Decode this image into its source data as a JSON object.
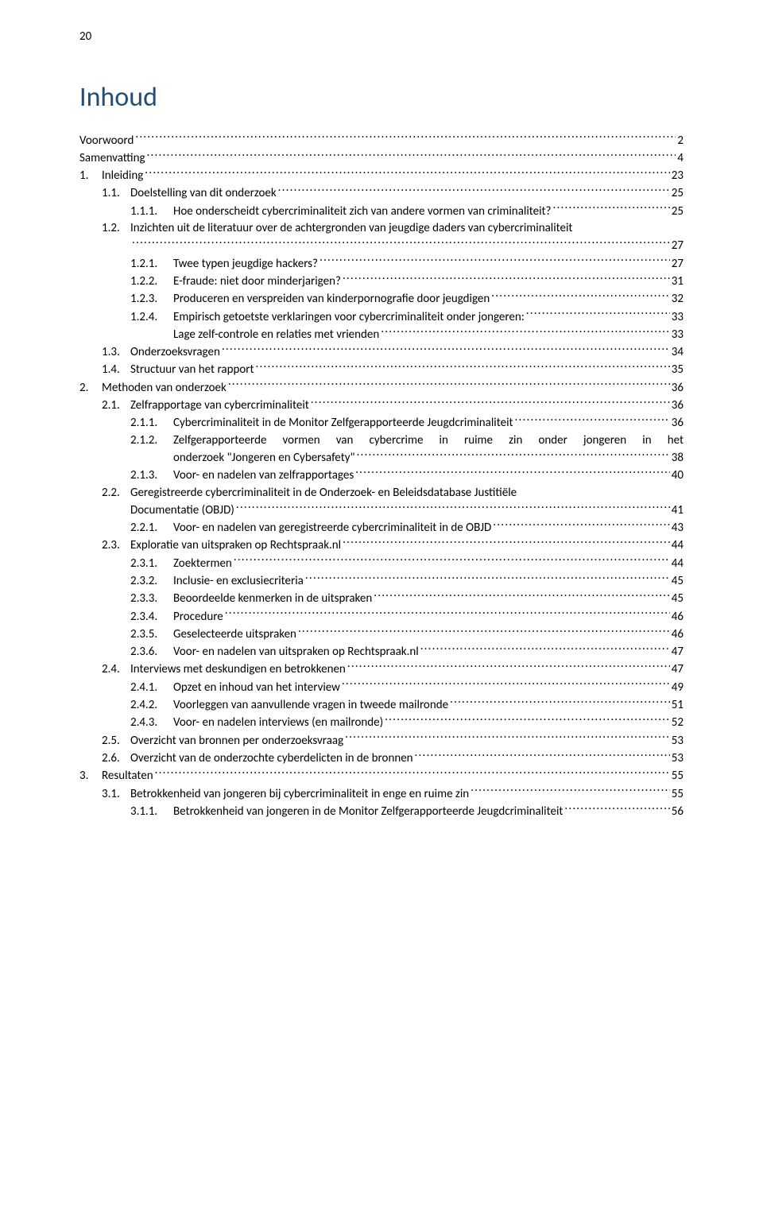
{
  "pageNumber": "20",
  "title": "Inhoud",
  "colors": {
    "title": "#1f4e79",
    "text": "#000000",
    "background": "#ffffff"
  },
  "typography": {
    "body_font": "Calibri",
    "body_size_pt": 11,
    "title_size_pt": 26
  },
  "entries": [
    {
      "level": 0,
      "num": "",
      "text": "Voorwoord",
      "page": "2"
    },
    {
      "level": 0,
      "num": "",
      "text": "Samenvatting",
      "page": "4"
    },
    {
      "level": 1,
      "num": "1.",
      "text": "Inleiding",
      "page": "23"
    },
    {
      "level": 2,
      "num": "1.1.",
      "text": "Doelstelling van dit onderzoek",
      "page": "25"
    },
    {
      "level": 3,
      "num": "1.1.1.",
      "text": "Hoe onderscheidt cybercriminaliteit zich van andere vormen van criminaliteit?",
      "page": "25"
    },
    {
      "level": 2,
      "num": "1.2.",
      "text": "Inzichten uit de literatuur over de achtergronden van jeugdige daders van cybercriminaliteit",
      "page": "27",
      "wrap": true,
      "line1": "Inzichten uit de literatuur over de achtergronden van jeugdige daders van cybercriminaliteit"
    },
    {
      "level": 3,
      "num": "1.2.1.",
      "text": "Twee typen jeugdige hackers?",
      "page": "27"
    },
    {
      "level": 3,
      "num": "1.2.2.",
      "text": "E-fraude: niet door minderjarigen?",
      "page": "31"
    },
    {
      "level": 3,
      "num": "1.2.3.",
      "text": "Produceren en verspreiden van kinderpornografie door jeugdigen",
      "page": "32"
    },
    {
      "level": 3,
      "num": "1.2.4.",
      "text": "Empirisch getoetste verklaringen voor cybercriminaliteit onder jongeren:",
      "page": "33"
    },
    {
      "level": "3x",
      "num": "",
      "text": "Lage zelf-controle en relaties met vrienden",
      "page": "33"
    },
    {
      "level": 2,
      "num": "1.3.",
      "text": "Onderzoeksvragen",
      "page": "34"
    },
    {
      "level": 2,
      "num": "1.4.",
      "text": "Structuur van het rapport",
      "page": "35"
    },
    {
      "level": 1,
      "num": "2.",
      "text": "Methoden van onderzoek",
      "page": "36"
    },
    {
      "level": 2,
      "num": "2.1.",
      "text": "Zelfrapportage van cybercriminaliteit",
      "page": "36"
    },
    {
      "level": 3,
      "num": "2.1.1.",
      "text": "Cybercriminaliteit in de Monitor Zelfgerapporteerde Jeugdcriminaliteit",
      "page": "36"
    },
    {
      "level": 3,
      "num": "2.1.2.",
      "text": "Zelfgerapporteerde vormen van cybercrime in ruime zin onder jongeren in het onderzoek \"Jongeren en Cybersafety\"",
      "page": "38",
      "wrap": true,
      "line1": "Zelfgerapporteerde  vormen  van  cybercrime  in  ruime  zin  onder  jongeren  in  het",
      "line2": "onderzoek \"Jongeren en Cybersafety\"",
      "justify": true
    },
    {
      "level": 3,
      "num": "2.1.3.",
      "text": "Voor- en nadelen van zelfrapportages",
      "page": "40"
    },
    {
      "level": 2,
      "num": "2.2.",
      "text": "Geregistreerde cybercriminaliteit in de Onderzoek- en Beleidsdatabase Justitiële Documentatie (OBJD)",
      "page": "41",
      "wrap": true,
      "line1": "Geregistreerde cybercriminaliteit in de Onderzoek- en Beleidsdatabase Justitiële",
      "line2": "Documentatie (OBJD)"
    },
    {
      "level": 3,
      "num": "2.2.1.",
      "text": "Voor- en nadelen van geregistreerde cybercriminaliteit in de OBJD",
      "page": "43"
    },
    {
      "level": 2,
      "num": "2.3.",
      "text": "Exploratie van uitspraken op Rechtspraak.nl",
      "page": "44"
    },
    {
      "level": 3,
      "num": "2.3.1.",
      "text": "Zoektermen",
      "page": "44"
    },
    {
      "level": 3,
      "num": "2.3.2.",
      "text": "Inclusie- en exclusiecriteria",
      "page": "45"
    },
    {
      "level": 3,
      "num": "2.3.3.",
      "text": "Beoordeelde kenmerken in de uitspraken",
      "page": "45"
    },
    {
      "level": 3,
      "num": "2.3.4.",
      "text": "Procedure",
      "page": "46"
    },
    {
      "level": 3,
      "num": "2.3.5.",
      "text": "Geselecteerde uitspraken",
      "page": "46"
    },
    {
      "level": 3,
      "num": "2.3.6.",
      "text": "Voor- en nadelen van uitspraken op Rechtspraak.nl",
      "page": "47"
    },
    {
      "level": 2,
      "num": "2.4.",
      "text": "Interviews met deskundigen en betrokkenen",
      "page": "47"
    },
    {
      "level": 3,
      "num": "2.4.1.",
      "text": "Opzet en inhoud van het interview",
      "page": "49"
    },
    {
      "level": 3,
      "num": "2.4.2.",
      "text": "Voorleggen van aanvullende vragen in tweede mailronde",
      "page": "51"
    },
    {
      "level": 3,
      "num": "2.4.3.",
      "text": "Voor- en nadelen interviews (en mailronde)",
      "page": "52"
    },
    {
      "level": 2,
      "num": "2.5.",
      "text": "Overzicht van bronnen per onderzoeksvraag",
      "page": "53"
    },
    {
      "level": 2,
      "num": "2.6.",
      "text": "Overzicht van de onderzochte cyberdelicten in de bronnen",
      "page": "53"
    },
    {
      "level": 1,
      "num": "3.",
      "text": "Resultaten",
      "page": "55"
    },
    {
      "level": 2,
      "num": "3.1.",
      "text": "Betrokkenheid van jongeren bij cybercriminaliteit in enge en ruime zin",
      "page": "55"
    },
    {
      "level": 3,
      "num": "3.1.1.",
      "text": "Betrokkenheid van jongeren in de Monitor Zelfgerapporteerde Jeugdcriminaliteit",
      "page": "56"
    }
  ]
}
